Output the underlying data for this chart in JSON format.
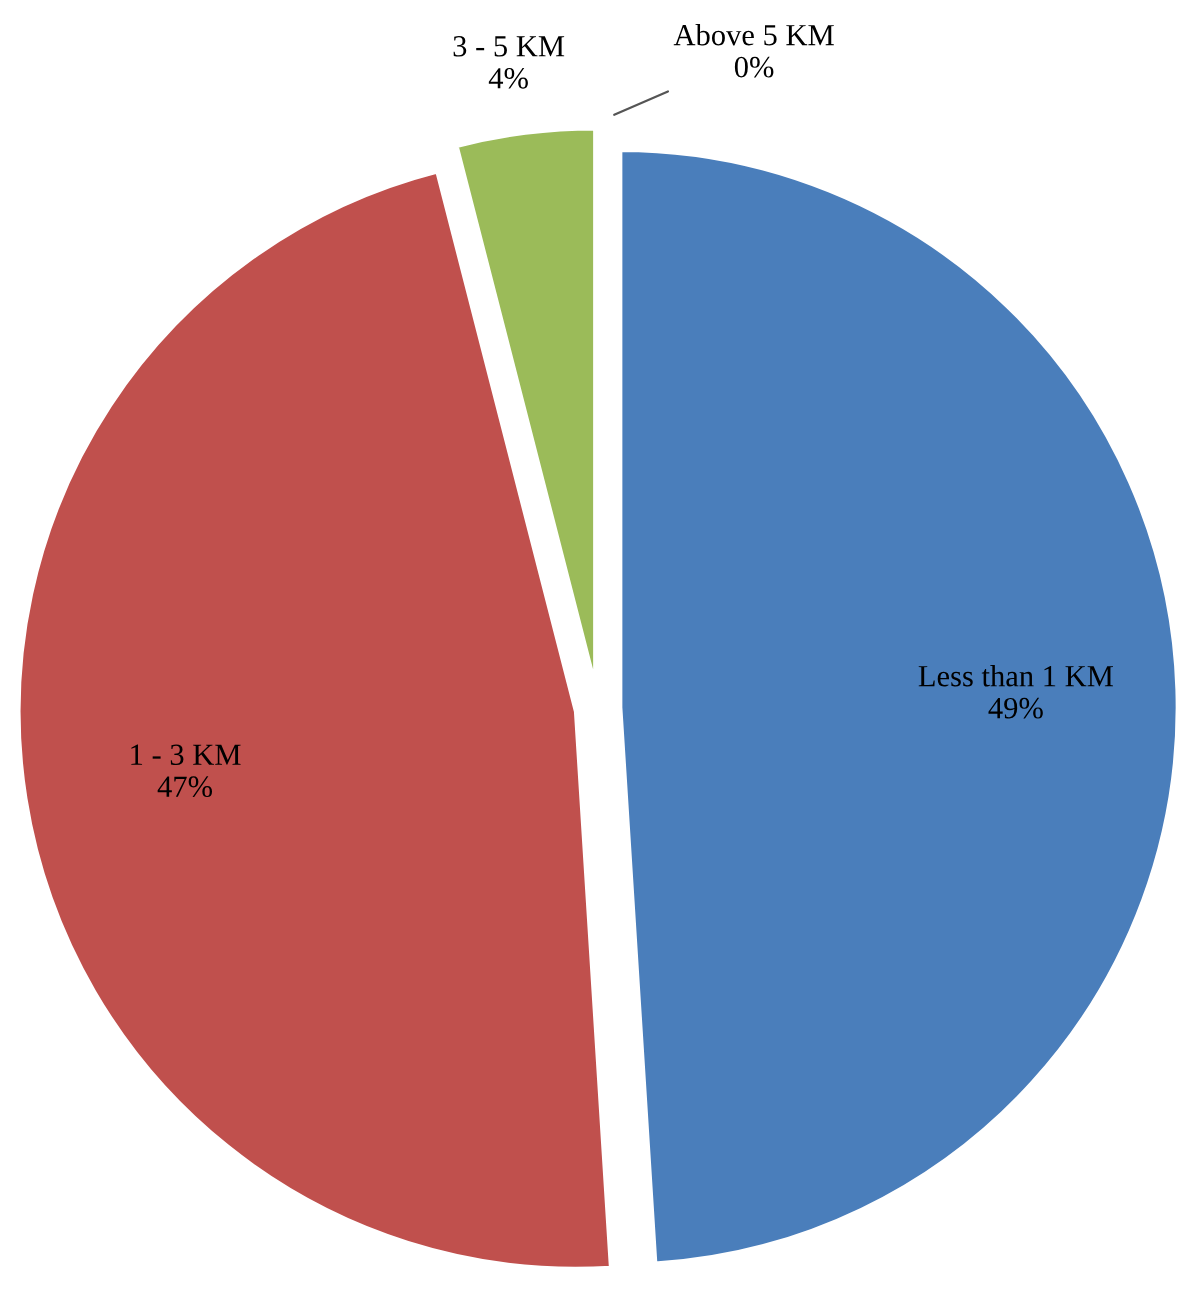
{
  "chart_data": {
    "type": "pie",
    "categories": [
      "Less than 1 KM",
      "1 - 3 KM",
      "3 - 5 KM",
      "Above 5 KM"
    ],
    "values": [
      49,
      47,
      4,
      0
    ],
    "value_labels": [
      "49%",
      "47%",
      "4%",
      "0%"
    ],
    "colors": [
      "#4a7ebb",
      "#c0504d",
      "#9bbb59",
      "#8064a2"
    ]
  }
}
